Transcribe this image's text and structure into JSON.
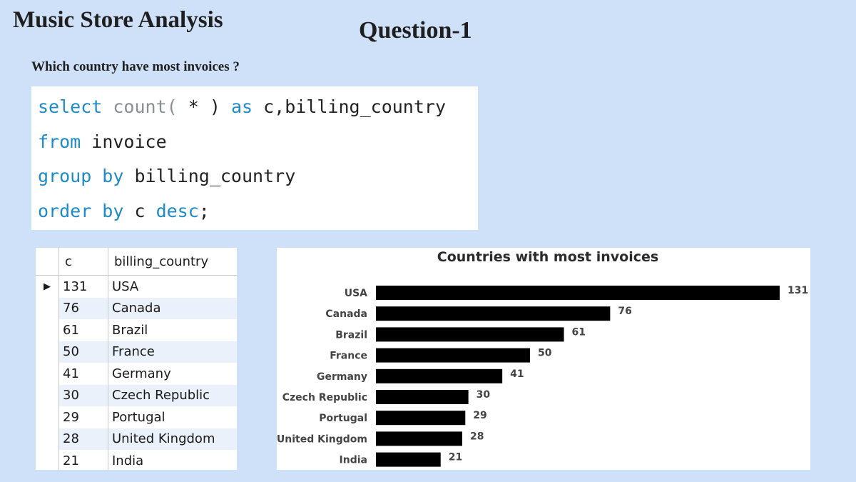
{
  "header": {
    "title": "Music Store Analysis",
    "question_number": "Question-1",
    "question_text": "Which country have most invoices ?"
  },
  "sql": {
    "lines": [
      [
        {
          "t": "select",
          "k": "kw"
        },
        {
          "t": " ",
          "k": ""
        },
        {
          "t": "count(",
          "k": "fn"
        },
        {
          "t": " * ",
          "k": ""
        },
        {
          "t": ")",
          "k": ""
        },
        {
          "t": " as ",
          "k": "kw"
        },
        {
          "t": "c,billing_country",
          "k": ""
        }
      ],
      [
        {
          "t": "from",
          "k": "kw"
        },
        {
          "t": " invoice",
          "k": ""
        }
      ],
      [
        {
          "t": "group by",
          "k": "kw"
        },
        {
          "t": " billing_country",
          "k": ""
        }
      ],
      [
        {
          "t": "order by",
          "k": "kw"
        },
        {
          "t": " c ",
          "k": ""
        },
        {
          "t": "desc",
          "k": "kw"
        },
        {
          "t": ";",
          "k": ""
        }
      ]
    ]
  },
  "result_grid": {
    "columns": [
      "c",
      "billing_country"
    ],
    "rows": [
      {
        "c": "131",
        "country": "USA"
      },
      {
        "c": "76",
        "country": "Canada"
      },
      {
        "c": "61",
        "country": "Brazil"
      },
      {
        "c": "50",
        "country": "France"
      },
      {
        "c": "41",
        "country": "Germany"
      },
      {
        "c": "30",
        "country": "Czech Republic"
      },
      {
        "c": "29",
        "country": "Portugal"
      },
      {
        "c": "28",
        "country": "United Kingdom"
      },
      {
        "c": "21",
        "country": "India"
      }
    ],
    "selected_row_marker": "▶"
  },
  "chart_data": {
    "type": "bar",
    "orientation": "horizontal",
    "title": "Countries with most invoices",
    "categories": [
      "USA",
      "Canada",
      "Brazil",
      "France",
      "Germany",
      "Czech Republic",
      "Portugal",
      "United Kingdom",
      "India"
    ],
    "values": [
      131,
      76,
      61,
      50,
      41,
      30,
      29,
      28,
      21
    ],
    "bar_color": "#000000",
    "xlim": [
      0,
      131
    ],
    "grid": false,
    "legend": "none"
  }
}
